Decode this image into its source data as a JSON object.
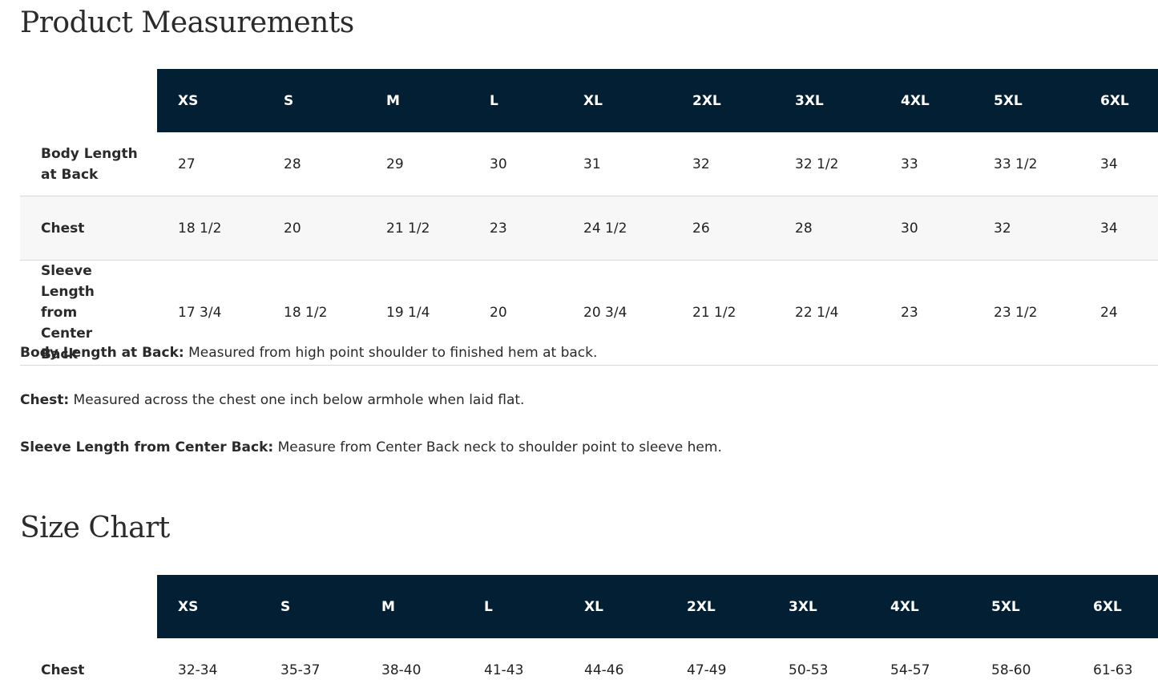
{
  "measurements": {
    "title": "Product Measurements",
    "sizes": [
      "XS",
      "S",
      "M",
      "L",
      "XL",
      "2XL",
      "3XL",
      "4XL",
      "5XL",
      "6XL"
    ],
    "rows": [
      {
        "label": "Body Length at Back",
        "values": [
          "27",
          "28",
          "29",
          "30",
          "31",
          "32",
          "32 1/2",
          "33",
          "33 1/2",
          "34"
        ]
      },
      {
        "label": "Chest",
        "values": [
          "18 1/2",
          "20",
          "21 1/2",
          "23",
          "24 1/2",
          "26",
          "28",
          "30",
          "32",
          "34"
        ]
      },
      {
        "label": "Sleeve Length from Center Back",
        "values": [
          "17 3/4",
          "18 1/2",
          "19 1/4",
          "20",
          "20 3/4",
          "21 1/2",
          "22 1/4",
          "23",
          "23 1/2",
          "24"
        ]
      }
    ],
    "notes": [
      {
        "term": "Body Length at Back:",
        "text": " Measured from high point shoulder to finished hem at back."
      },
      {
        "term": "Chest:",
        "text": " Measured across the chest one inch below armhole when laid flat."
      },
      {
        "term": "Sleeve Length from Center Back:",
        "text": " Measure from Center Back neck to shoulder point to sleeve hem."
      }
    ]
  },
  "size_chart": {
    "title": "Size Chart",
    "sizes": [
      "XS",
      "S",
      "M",
      "L",
      "XL",
      "2XL",
      "3XL",
      "4XL",
      "5XL",
      "6XL"
    ],
    "rows": [
      {
        "label": "Chest",
        "values": [
          "32-34",
          "35-37",
          "38-40",
          "41-43",
          "44-46",
          "47-49",
          "50-53",
          "54-57",
          "58-60",
          "61-63"
        ]
      }
    ]
  },
  "colors": {
    "header_bg": "#021f33",
    "header_text": "#ffffff",
    "alt_row_bg": "#f7f7f7",
    "divider": "#d9d9d9"
  }
}
